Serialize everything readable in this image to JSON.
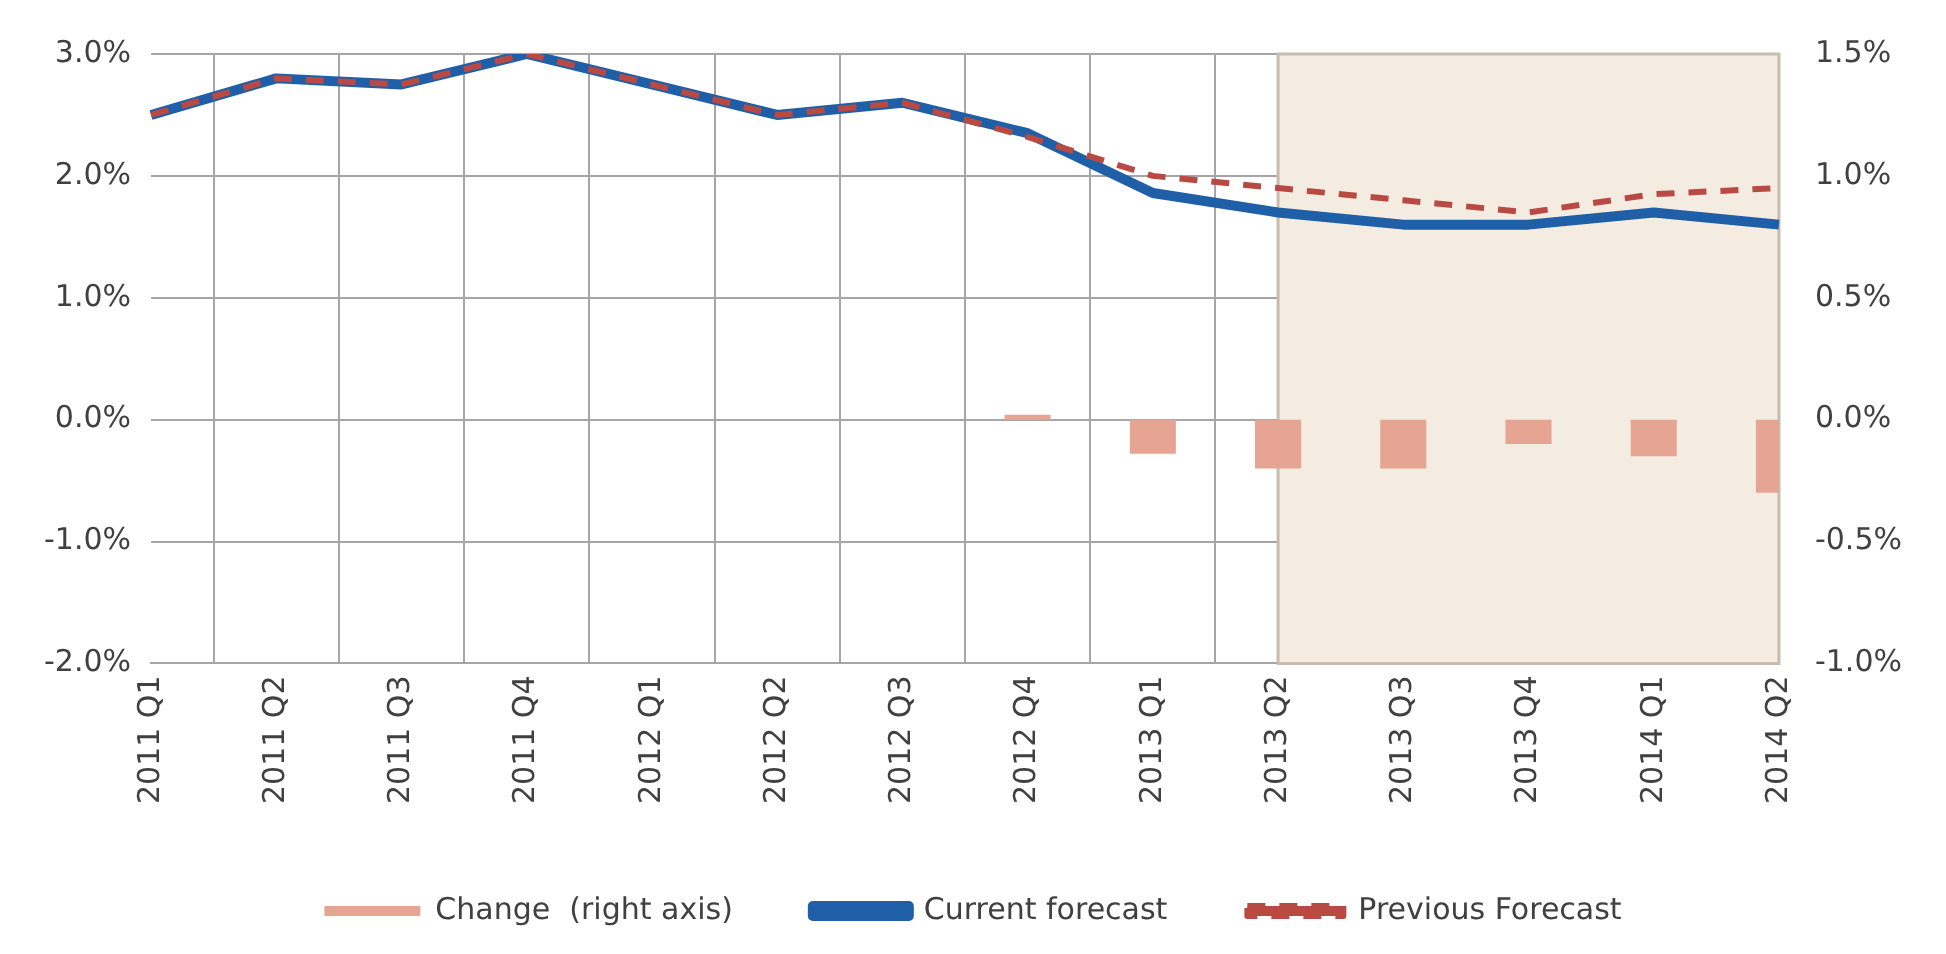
{
  "chart_data": {
    "type": "line",
    "categories": [
      "2011 Q1",
      "2011 Q2",
      "2011 Q3",
      "2011 Q4",
      "2012 Q1",
      "2012 Q2",
      "2012 Q3",
      "2012 Q4",
      "2013 Q1",
      "2013 Q2",
      "2013 Q3",
      "2013 Q4",
      "2014 Q1",
      "2014 Q2"
    ],
    "series": [
      {
        "name": "Change  (right axis)",
        "type": "bar",
        "axis": "y2",
        "color": "#e6a592",
        "values": [
          null,
          null,
          null,
          null,
          null,
          null,
          null,
          0.02,
          -0.14,
          -0.2,
          -0.2,
          -0.1,
          -0.15,
          -0.3
        ]
      },
      {
        "name": "Current forecast",
        "color": "#1f5fa8",
        "line_style": "solid",
        "values": [
          2.5,
          2.8,
          2.75,
          3.0,
          2.75,
          2.5,
          2.6,
          2.35,
          1.86,
          1.7,
          1.6,
          1.6,
          1.7,
          1.6
        ]
      },
      {
        "name": "Previous Forecast",
        "color": "#b94a43",
        "line_style": "dashed",
        "values": [
          2.5,
          2.8,
          2.75,
          3.0,
          2.75,
          2.5,
          2.6,
          2.32,
          2.0,
          1.9,
          1.8,
          1.7,
          1.85,
          1.9
        ]
      }
    ],
    "ylim": [
      -2,
      3
    ],
    "yticks": [
      {
        "value": -2,
        "label": "-2.0%"
      },
      {
        "value": -1,
        "label": "-1.0%"
      },
      {
        "value": 0,
        "label": "0.0%"
      },
      {
        "value": 1,
        "label": "1.0%"
      },
      {
        "value": 2,
        "label": "2.0%"
      },
      {
        "value": 3,
        "label": "3.0%"
      }
    ],
    "y2lim": [
      -1,
      1.5
    ],
    "y2ticks": [
      {
        "value": -1,
        "label": "-1.0%"
      },
      {
        "value": -0.5,
        "label": "-0.5%"
      },
      {
        "value": 0,
        "label": "0.0%"
      },
      {
        "value": 0.5,
        "label": "0.5%"
      },
      {
        "value": 1,
        "label": "1.0%"
      },
      {
        "value": 1.5,
        "label": "1.5%"
      }
    ],
    "bands": [
      {
        "axis": "x",
        "from": "2013 Q2",
        "to": "2014 Q2",
        "color": "#f5ece1"
      }
    ],
    "grid": true,
    "legend": "bottom",
    "marker": "none"
  }
}
